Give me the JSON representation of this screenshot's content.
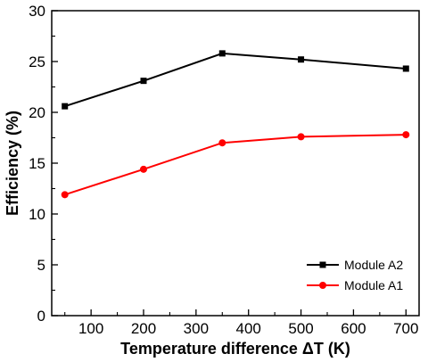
{
  "chart_data": {
    "type": "line",
    "xlabel": "Temperature difference ΔT (K)",
    "ylabel": "Efficiency (%)",
    "xlim": [
      25,
      725
    ],
    "ylim": [
      0,
      30
    ],
    "x_ticks": [
      100,
      200,
      300,
      400,
      500,
      600,
      700
    ],
    "y_ticks": [
      0,
      5,
      10,
      15,
      20,
      25,
      30
    ],
    "grid": false,
    "legend_position": "bottom-right",
    "series": [
      {
        "name": "Module A2",
        "color": "#000000",
        "marker": "square",
        "x": [
          50,
          200,
          350,
          500,
          700
        ],
        "values": [
          20.6,
          23.1,
          25.8,
          25.2,
          24.3
        ]
      },
      {
        "name": "Module A1",
        "color": "#ff0000",
        "marker": "circle",
        "x": [
          50,
          200,
          350,
          500,
          700
        ],
        "values": [
          11.9,
          14.4,
          17.0,
          17.6,
          17.8
        ]
      }
    ]
  }
}
